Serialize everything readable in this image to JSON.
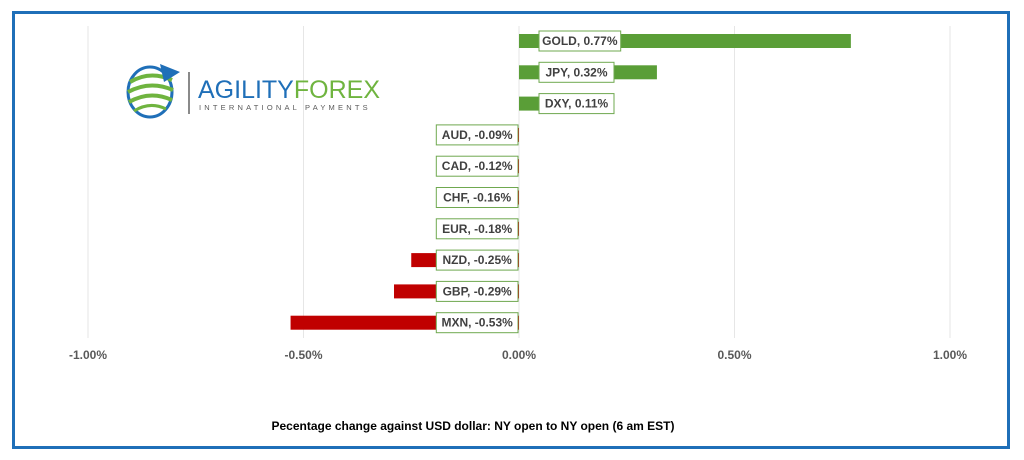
{
  "brand": {
    "name_part1": "AGILITY",
    "name_part2": "FOREX",
    "tagline": "INTERNATIONAL PAYMENTS",
    "color_primary": "#1f6fb8",
    "color_secondary": "#6fb43f"
  },
  "caption": "Pecentage change against USD dollar:  NY open to NY open  (6 am EST)",
  "chart_data": {
    "type": "bar",
    "orientation": "horizontal",
    "categories": [
      "GOLD",
      "JPY",
      "DXY",
      "AUD",
      "CAD",
      "CHF",
      "EUR",
      "NZD",
      "GBP",
      "MXN"
    ],
    "values": [
      0.77,
      0.32,
      0.11,
      -0.09,
      -0.12,
      -0.16,
      -0.18,
      -0.25,
      -0.29,
      -0.53
    ],
    "data_labels": [
      "GOLD, 0.77%",
      "JPY, 0.32%",
      "DXY, 0.11%",
      "AUD, -0.09%",
      "CAD, -0.12%",
      "CHF, -0.16%",
      "EUR, -0.18%",
      "NZD, -0.25%",
      "GBP, -0.29%",
      "MXN, -0.53%"
    ],
    "xlim": [
      -1.0,
      1.0
    ],
    "x_ticks": [
      -1.0,
      -0.5,
      0.0,
      0.5,
      1.0
    ],
    "x_tick_labels": [
      "-1.00%",
      "-0.50%",
      "0.00%",
      "0.50%",
      "1.00%"
    ],
    "positive_color": "#5a9e37",
    "negative_color": "#c00000",
    "grid": "vertical",
    "unit": "%"
  }
}
